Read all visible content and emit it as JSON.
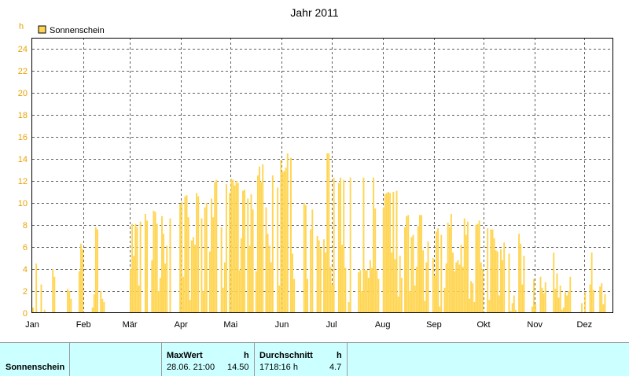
{
  "colors": {
    "bar": "#ffd552",
    "bar_edge": "#f2c23a",
    "axis_text": "#e8a300",
    "grid": "#606060",
    "table_bg": "#ccffff"
  },
  "chart_data": {
    "type": "bar",
    "title": "Jahr 2011",
    "ylabel": "h",
    "ylim": [
      0,
      25
    ],
    "yticks": [
      "0",
      "2",
      "4",
      "6",
      "8",
      "10",
      "12",
      "14",
      "16",
      "18",
      "20",
      "22",
      "24"
    ],
    "months": [
      "Jan",
      "Feb",
      "Mär",
      "Apr",
      "Mai",
      "Jun",
      "Jul",
      "Aug",
      "Sep",
      "Okt",
      "Nov",
      "Dez"
    ],
    "grid": true,
    "legend_position": "top-left",
    "series": [
      {
        "name": "Sonnenschein",
        "x_unit": "Tag des Jahres",
        "values": [
          0.5,
          0,
          4.5,
          0,
          0,
          2.6,
          0,
          0.3,
          0,
          0,
          0,
          0,
          4,
          3.3,
          0,
          0,
          0,
          0,
          0,
          0,
          0,
          2.2,
          2,
          1.3,
          0,
          0,
          0,
          0,
          3.8,
          6.3,
          5.8,
          0,
          0,
          0,
          0,
          0,
          0.5,
          1.7,
          7.8,
          7.6,
          0,
          2,
          1.3,
          1,
          0,
          0,
          0,
          0,
          0,
          0,
          0,
          0,
          0,
          0,
          0,
          0,
          0,
          0,
          0,
          4,
          8.1,
          5.2,
          8.1,
          7.8,
          2.5,
          8.3,
          0,
          0,
          9,
          8.4,
          0,
          0,
          4.8,
          9.3,
          9.2,
          8.1,
          2,
          3.2,
          8.8,
          7.2,
          4.5,
          6.1,
          0,
          8.6,
          0,
          0,
          0,
          0,
          0,
          9.9,
          10.1,
          3.3,
          10.6,
          10.7,
          8.7,
          1.2,
          6.6,
          6.9,
          6.2,
          10.9,
          10.6,
          0,
          8.6,
          2,
          9.6,
          10,
          0,
          5.6,
          10.4,
          8.7,
          11.9,
          12.1,
          0,
          0,
          7.8,
          2.3,
          4.6,
          11.7,
          0,
          10.9,
          12.2,
          12.1,
          11.6,
          12,
          11.8,
          3.9,
          6.8,
          11.1,
          11.2,
          0,
          10.4,
          6.1,
          10.8,
          9.4,
          0,
          3.8,
          12.5,
          13.3,
          11.9,
          13.5,
          0,
          9.6,
          7.2,
          6.1,
          4.6,
          12.5,
          0,
          0,
          11.4,
          2.5,
          13.9,
          12.8,
          12.9,
          13.2,
          14.5,
          0,
          14.1,
          5.4,
          3.1,
          0,
          0,
          0,
          0,
          0,
          10,
          9.8,
          3.1,
          0,
          7.6,
          9.4,
          0,
          0,
          7,
          6.6,
          5.9,
          0,
          6.7,
          5.5,
          14.5,
          14.5,
          4.2,
          2.6,
          12.3,
          0,
          0,
          11.8,
          12.3,
          6.2,
          12.1,
          4.1,
          0,
          1,
          12.3,
          0,
          0,
          0,
          0,
          3.7,
          3.9,
          2,
          12.3,
          3.9,
          3.9,
          3.2,
          4.8,
          4.1,
          12.3,
          9.5,
          3.9,
          3.1,
          0,
          0,
          9.6,
          10.8,
          10.9,
          11,
          10.9,
          5.5,
          11,
          4.9,
          11.1,
          1.5,
          5.2,
          3.2,
          0,
          7.8,
          8.8,
          8.9,
          2,
          6.9,
          7.1,
          2.5,
          4.2,
          7.9,
          8.9,
          8.9,
          5.7,
          1.1,
          4.6,
          6.5,
          0,
          0,
          5,
          3.4,
          7.4,
          7.7,
          0.6,
          7.1,
          0,
          2.3,
          4.5,
          8.2,
          7.8,
          9,
          5.5,
          3.8,
          4.6,
          4.8,
          4.4,
          6.2,
          4.2,
          8.6,
          7.1,
          8.3,
          1.3,
          2.9,
          2.7,
          1,
          8,
          8.1,
          8.4,
          4.6,
          4,
          0,
          0,
          7.7,
          1.2,
          7.6,
          7.6,
          6.8,
          5.7,
          5.6,
          1.6,
          5.8,
          4.8,
          6.4,
          0,
          0,
          5.4,
          0.2,
          0.9,
          1.6,
          0.3,
          0,
          7.2,
          6.3,
          2.6,
          5.2,
          0,
          0,
          0,
          0,
          0.6,
          3.1,
          0.8,
          0,
          0,
          3.3,
          2.3,
          1.8,
          2.8,
          0,
          0,
          0,
          0,
          5.5,
          2.2,
          3.6,
          1.4,
          2.5,
          0.3,
          0.5,
          1.9,
          1.6,
          2,
          3.3,
          0,
          0,
          0,
          0,
          0,
          0.1,
          0.9,
          0,
          1.9,
          0,
          0,
          2.6,
          5.5,
          2.1,
          0,
          0,
          0.1,
          2.4,
          2.7,
          0.8,
          1.7,
          0,
          0,
          0,
          0
        ]
      }
    ]
  },
  "table": {
    "row_label": "Sonnenschein",
    "maxwert_header": "MaxWert",
    "maxwert_unit": "h",
    "maxwert_date": "28.06.  21:00",
    "maxwert_value": "14.50",
    "durchschnitt_header": "Durchschnitt",
    "durchschnitt_unit": "h",
    "durchschnitt_total": "1718:16 h",
    "durchschnitt_value": "4.7"
  }
}
